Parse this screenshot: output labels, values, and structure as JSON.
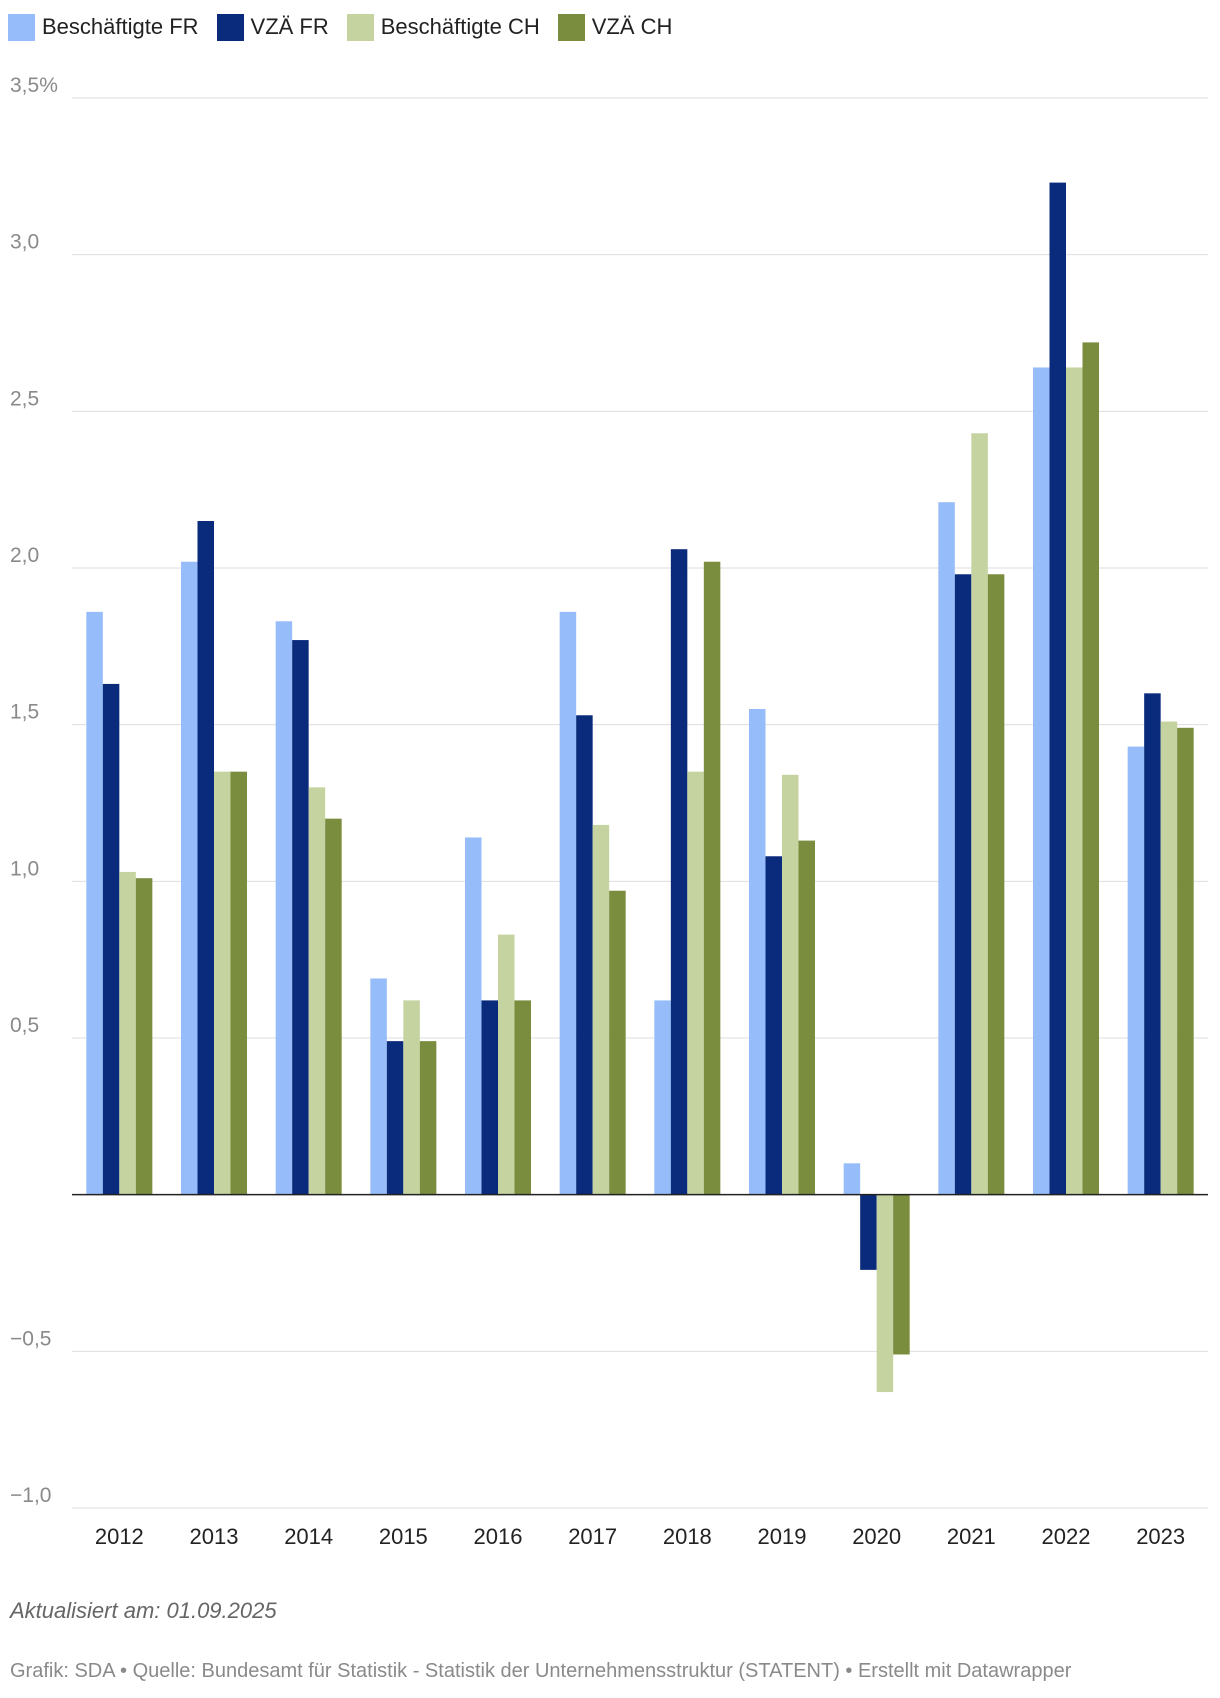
{
  "legend": [
    {
      "label": "Beschäftigte FR",
      "color": "#96bdf9"
    },
    {
      "label": "VZÄ FR",
      "color": "#0a2a7c"
    },
    {
      "label": "Beschäftigte CH",
      "color": "#c4d3a0"
    },
    {
      "label": "VZÄ CH",
      "color": "#7a8c3e"
    }
  ],
  "chart_data": {
    "type": "bar",
    "categories": [
      "2012",
      "2013",
      "2014",
      "2015",
      "2016",
      "2017",
      "2018",
      "2019",
      "2020",
      "2021",
      "2022",
      "2023"
    ],
    "series": [
      {
        "name": "Beschäftigte FR",
        "color": "#96bdf9",
        "values": [
          1.86,
          2.02,
          1.83,
          0.69,
          1.14,
          1.86,
          0.62,
          1.55,
          0.1,
          2.21,
          2.64,
          1.43
        ]
      },
      {
        "name": "VZÄ FR",
        "color": "#0a2a7c",
        "values": [
          1.63,
          2.15,
          1.77,
          0.49,
          0.62,
          1.53,
          2.06,
          1.08,
          -0.24,
          1.98,
          3.23,
          1.6
        ]
      },
      {
        "name": "Beschäftigte CH",
        "color": "#c4d3a0",
        "values": [
          1.03,
          1.35,
          1.3,
          0.62,
          0.83,
          1.18,
          1.35,
          1.34,
          -0.63,
          2.43,
          2.64,
          1.51
        ]
      },
      {
        "name": "VZÄ CH",
        "color": "#7a8c3e",
        "values": [
          1.01,
          1.35,
          1.2,
          0.49,
          0.62,
          0.97,
          2.02,
          1.13,
          -0.51,
          1.98,
          2.72,
          1.49
        ]
      }
    ],
    "ylim": [
      -1.0,
      3.5
    ],
    "yticks": [
      {
        "value": 3.5,
        "label": "3,5%"
      },
      {
        "value": 3.0,
        "label": "3,0"
      },
      {
        "value": 2.5,
        "label": "2,5"
      },
      {
        "value": 2.0,
        "label": "2,0"
      },
      {
        "value": 1.5,
        "label": "1,5"
      },
      {
        "value": 1.0,
        "label": "1,0"
      },
      {
        "value": 0.5,
        "label": "0,5"
      },
      {
        "value": -0.5,
        "label": "−0,5"
      },
      {
        "value": -1.0,
        "label": "−1,0"
      }
    ],
    "grid": true,
    "legend_position": "top-left",
    "xlabel": "",
    "ylabel": ""
  },
  "footer": {
    "updated": "Aktualisiert am: 01.09.2025",
    "source": "Grafik: SDA • Quelle: Bundesamt für Statistik - Statistik der Unternehmensstruktur (STATENT) • Erstellt mit Datawrapper"
  }
}
